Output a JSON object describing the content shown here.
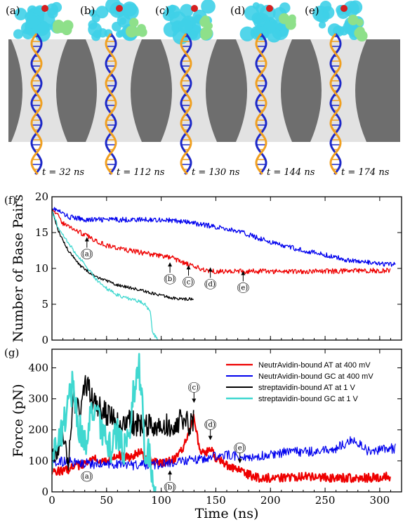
{
  "snapshots": [
    {
      "label": "(a)",
      "time_label": "t = 32 ns"
    },
    {
      "label": "(b)",
      "time_label": "t = 112 ns"
    },
    {
      "label": "(c)",
      "time_label": "t = 130 ns"
    },
    {
      "label": "(d)",
      "time_label": "t = 144 ns"
    },
    {
      "label": "(e)",
      "time_label": "t = 174 ns"
    }
  ],
  "colors": {
    "protein": "#3fd0e8",
    "protein_green": "#8ee08a",
    "protein_red": "#d42020",
    "membrane": "#6e6e6e",
    "pore": "#e8e8e8",
    "dna_blue": "#1c28c8",
    "dna_orange": "#f0a020"
  },
  "chart_data": [
    {
      "type": "line",
      "panel_label": "(f)",
      "xlabel": "",
      "ylabel": "Number of Base Pairs",
      "xlim": [
        0,
        320
      ],
      "ylim": [
        0,
        20
      ],
      "xticks": [
        0,
        50,
        100,
        150,
        200,
        250,
        300
      ],
      "yticks": [
        0,
        5,
        10,
        15,
        20
      ],
      "show_xtick_labels": false,
      "series": [
        {
          "color": "#0000ee",
          "noise": 0.35,
          "x": [
            0,
            15,
            30,
            60,
            100,
            115,
            130,
            150,
            170,
            190,
            210,
            240,
            270,
            300,
            315
          ],
          "y": [
            18.5,
            17.2,
            16.8,
            16.8,
            16.8,
            16.6,
            16.3,
            15.8,
            15.2,
            14.2,
            13.2,
            12.2,
            11.2,
            10.6,
            10.5
          ]
        },
        {
          "color": "#ee0000",
          "noise": 0.35,
          "x": [
            0,
            10,
            20,
            32,
            50,
            70,
            90,
            110,
            120,
            130,
            140,
            150,
            200,
            250,
            300,
            310
          ],
          "y": [
            18.5,
            16.3,
            15.5,
            14.5,
            13.2,
            12.5,
            12.0,
            11.5,
            10.8,
            10.2,
            9.8,
            9.6,
            9.6,
            9.6,
            9.7,
            9.7
          ]
        },
        {
          "color": "#000000",
          "noise": 0.2,
          "x": [
            0,
            5,
            15,
            25,
            40,
            60,
            80,
            100,
            110,
            120,
            130
          ],
          "y": [
            18.5,
            15.5,
            12.5,
            10.5,
            8.8,
            7.7,
            7.0,
            6.2,
            5.9,
            5.7,
            5.8
          ]
        },
        {
          "color": "#40d8d0",
          "noise": 0.25,
          "x": [
            0,
            5,
            15,
            25,
            32,
            40,
            50,
            60,
            70,
            80,
            85,
            90,
            92,
            95,
            97
          ],
          "y": [
            18.0,
            16.0,
            13.5,
            11.5,
            10.2,
            8.5,
            7.2,
            6.3,
            5.8,
            5.4,
            5.0,
            4.0,
            1.0,
            0.5,
            0.2
          ]
        }
      ],
      "annotations": [
        {
          "label": "(a)",
          "x": 32,
          "y": 12.3
        },
        {
          "label": "(b)",
          "x": 108,
          "y": 8.8
        },
        {
          "label": "(c)",
          "x": 125,
          "y": 8.4
        },
        {
          "label": "(d)",
          "x": 145,
          "y": 8.1
        },
        {
          "label": "(e)",
          "x": 175,
          "y": 7.6
        }
      ]
    },
    {
      "type": "line",
      "panel_label": "(g)",
      "xlabel": "Time (ns)",
      "ylabel": "Force (pN)",
      "xlim": [
        0,
        320
      ],
      "ylim": [
        0,
        460
      ],
      "xticks": [
        0,
        50,
        100,
        150,
        200,
        250,
        300
      ],
      "yticks": [
        0,
        100,
        200,
        300,
        400
      ],
      "show_xtick_labels": true,
      "legend_position": "top-right",
      "series": [
        {
          "name": "NeutrAvidin-bound AT at 400 mV",
          "color": "#ee0000",
          "width": 2.2,
          "noise": 14,
          "x": [
            0,
            10,
            20,
            30,
            40,
            50,
            60,
            70,
            80,
            90,
            100,
            110,
            120,
            125,
            130,
            135,
            140,
            145,
            150,
            160,
            170,
            180,
            190,
            200,
            230,
            260,
            290,
            310
          ],
          "y": [
            70,
            65,
            80,
            90,
            110,
            100,
            120,
            110,
            130,
            100,
            90,
            100,
            140,
            190,
            250,
            130,
            120,
            140,
            110,
            85,
            75,
            55,
            45,
            45,
            50,
            45,
            45,
            50
          ]
        },
        {
          "name": "NeutrAvidin-bound GC at 400 mV",
          "color": "#0000ee",
          "width": 1.2,
          "noise": 16,
          "x": [
            0,
            20,
            40,
            60,
            80,
            100,
            120,
            140,
            160,
            180,
            200,
            220,
            240,
            260,
            275,
            290,
            305,
            315
          ],
          "y": [
            100,
            95,
            90,
            90,
            85,
            90,
            100,
            110,
            120,
            110,
            120,
            130,
            130,
            140,
            170,
            130,
            140,
            140
          ]
        },
        {
          "name": "streptavidin-bound AT at 1 V",
          "color": "#000000",
          "width": 1.6,
          "noise": 40,
          "x": [
            0,
            5,
            10,
            15,
            20,
            25,
            30,
            35,
            40,
            50,
            60,
            70,
            80,
            90,
            100,
            110,
            120,
            125,
            130
          ],
          "y": [
            140,
            120,
            180,
            110,
            300,
            250,
            350,
            320,
            280,
            250,
            220,
            230,
            210,
            220,
            210,
            220,
            230,
            220,
            230
          ]
        },
        {
          "name": "streptavidin-bound GC at 1 V",
          "color": "#40d8d0",
          "width": 2.6,
          "noise": 55,
          "x": [
            0,
            5,
            10,
            15,
            20,
            25,
            30,
            35,
            40,
            45,
            50,
            55,
            60,
            65,
            70,
            75,
            80,
            85,
            90,
            95
          ],
          "y": [
            120,
            150,
            200,
            300,
            350,
            200,
            150,
            250,
            300,
            200,
            150,
            150,
            200,
            130,
            180,
            320,
            400,
            150,
            100,
            0
          ]
        }
      ],
      "annotations": [
        {
          "label": "(a)",
          "x": 32,
          "y": 52,
          "arrow": false
        },
        {
          "label": "(b)",
          "x": 108,
          "y": 22,
          "arrow": "up"
        },
        {
          "label": "(c)",
          "x": 130,
          "y": 330,
          "arrow": "down"
        },
        {
          "label": "(d)",
          "x": 145,
          "y": 210,
          "arrow": "down"
        },
        {
          "label": "(e)",
          "x": 172,
          "y": 135,
          "arrow": "down"
        }
      ]
    }
  ]
}
